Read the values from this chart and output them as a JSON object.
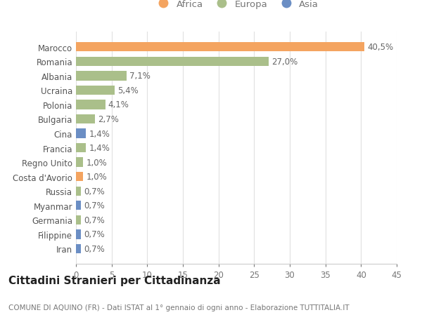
{
  "countries": [
    "Marocco",
    "Romania",
    "Albania",
    "Ucraina",
    "Polonia",
    "Bulgaria",
    "Cina",
    "Francia",
    "Regno Unito",
    "Costa d'Avorio",
    "Russia",
    "Myanmar",
    "Germania",
    "Filippine",
    "Iran"
  ],
  "values": [
    40.5,
    27.0,
    7.1,
    5.4,
    4.1,
    2.7,
    1.4,
    1.4,
    1.0,
    1.0,
    0.7,
    0.7,
    0.7,
    0.7,
    0.7
  ],
  "labels": [
    "40,5%",
    "27,0%",
    "7,1%",
    "5,4%",
    "4,1%",
    "2,7%",
    "1,4%",
    "1,4%",
    "1,0%",
    "1,0%",
    "0,7%",
    "0,7%",
    "0,7%",
    "0,7%",
    "0,7%"
  ],
  "continents": [
    "Africa",
    "Europa",
    "Europa",
    "Europa",
    "Europa",
    "Europa",
    "Asia",
    "Europa",
    "Europa",
    "Africa",
    "Europa",
    "Asia",
    "Europa",
    "Asia",
    "Asia"
  ],
  "colors": {
    "Africa": "#F4A460",
    "Europa": "#AABF8A",
    "Asia": "#6B8EC4"
  },
  "title": "Cittadini Stranieri per Cittadinanza",
  "subtitle": "COMUNE DI AQUINO (FR) - Dati ISTAT al 1° gennaio di ogni anno - Elaborazione TUTTITALIA.IT",
  "xlim": [
    0,
    45
  ],
  "xticks": [
    0,
    5,
    10,
    15,
    20,
    25,
    30,
    35,
    40,
    45
  ],
  "background_color": "#ffffff",
  "grid_color": "#e0e0e0",
  "bar_height": 0.65,
  "font_size_labels": 8.5,
  "font_size_title": 11,
  "font_size_subtitle": 7.5,
  "font_size_ticks": 8.5,
  "font_size_legend": 9.5
}
